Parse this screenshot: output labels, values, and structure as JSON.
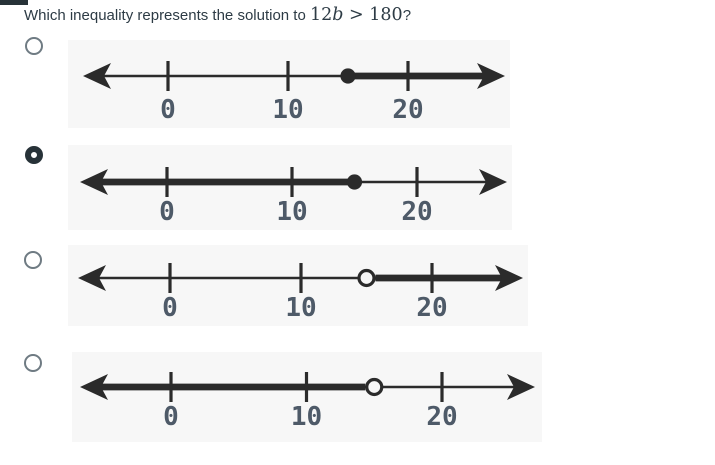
{
  "question": {
    "prefix": "Which inequality represents the solution to ",
    "math_coeff": "12",
    "math_var": "b",
    "math_rest": " > 180",
    "suffix": "?"
  },
  "colors": {
    "page_bg": "#ffffff",
    "accent_bar": "#273238",
    "text": "#2d3b45",
    "ink": "#2b2b2b",
    "image_bg": "#f7f7f7",
    "tick_label": "#4e5a68",
    "radio_border": "#6f7b83",
    "radio_selected": "#273238"
  },
  "chart_data": [
    {
      "type": "number-line",
      "ticks": [
        0,
        10,
        20
      ],
      "point": 15,
      "point_style": "closed",
      "shade": "right"
    },
    {
      "type": "number-line",
      "ticks": [
        0,
        10,
        20
      ],
      "point": 15,
      "point_style": "closed",
      "shade": "left"
    },
    {
      "type": "number-line",
      "ticks": [
        0,
        10,
        20
      ],
      "point": 15,
      "point_style": "open",
      "shade": "right"
    },
    {
      "type": "number-line",
      "ticks": [
        0,
        10,
        20
      ],
      "point": 15,
      "point_style": "open",
      "shade": "left"
    }
  ],
  "options": [
    {
      "index": 1,
      "selected": false,
      "number_line": {
        "ticks": [
          0,
          10,
          20
        ],
        "point": 15,
        "point_style": "closed",
        "shade": "right"
      }
    },
    {
      "index": 2,
      "selected": true,
      "number_line": {
        "ticks": [
          0,
          10,
          20
        ],
        "point": 15,
        "point_style": "closed",
        "shade": "left"
      }
    },
    {
      "index": 3,
      "selected": false,
      "number_line": {
        "ticks": [
          0,
          10,
          20
        ],
        "point": 15,
        "point_style": "open",
        "shade": "right"
      }
    },
    {
      "index": 4,
      "selected": false,
      "number_line": {
        "ticks": [
          0,
          10,
          20
        ],
        "point": 15,
        "point_style": "open",
        "shade": "left"
      }
    }
  ]
}
